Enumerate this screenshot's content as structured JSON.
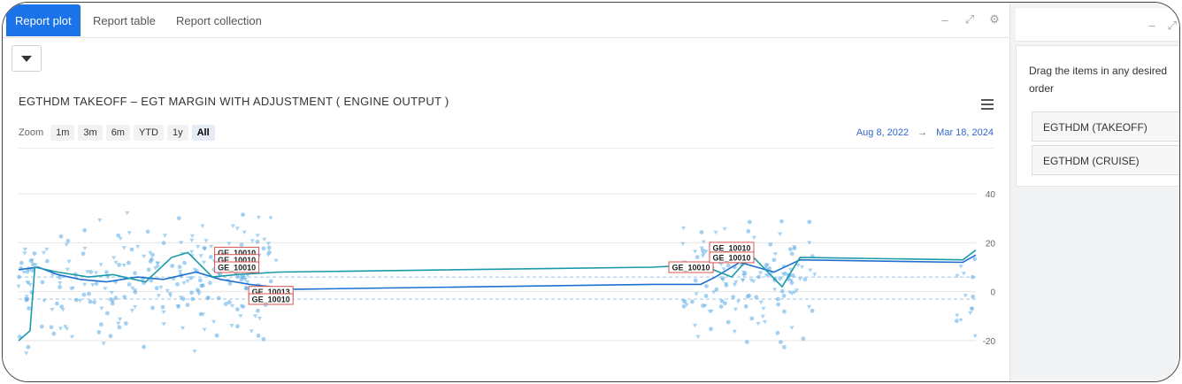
{
  "tabs": [
    {
      "label": "Report plot",
      "active": true
    },
    {
      "label": "Report table",
      "active": false
    },
    {
      "label": "Report collection",
      "active": false
    }
  ],
  "chart": {
    "title": "EGTHDM TAKEOFF – EGT MARGIN WITH ADJUSTMENT ( ENGINE OUTPUT )",
    "zoom_label": "Zoom",
    "zoom_options": [
      "1m",
      "3m",
      "6m",
      "YTD",
      "1y",
      "All"
    ],
    "zoom_selected": "All",
    "range_from": "Aug 8, 2022",
    "range_arrow": "→",
    "range_to": "Mar 18, 2024"
  },
  "chart_data": {
    "type": "line",
    "title": "EGTHDM TAKEOFF – EGT MARGIN WITH ADJUSTMENT ( ENGINE OUTPUT )",
    "xlabel": "",
    "ylabel": "",
    "x_range": [
      "2022-08-08",
      "2024-03-18"
    ],
    "ylim": [
      -20,
      40
    ],
    "y_ticks": [
      40,
      20,
      0,
      -20
    ],
    "grid": true,
    "reference_lines": [
      6,
      -3
    ],
    "series": [
      {
        "color": "#1f6fd1",
        "points": [
          [
            "2022-08-08",
            9
          ],
          [
            "2022-08-20",
            10
          ],
          [
            "2022-09-01",
            7
          ],
          [
            "2022-09-15",
            5
          ],
          [
            "2022-10-01",
            4
          ],
          [
            "2022-10-20",
            6
          ],
          [
            "2022-11-05",
            5
          ],
          [
            "2022-11-25",
            8
          ],
          [
            "2022-12-10",
            5
          ],
          [
            "2022-12-28",
            3
          ],
          [
            "2023-01-10",
            2
          ],
          [
            "2023-01-25",
            1
          ],
          [
            "2023-09-01",
            3
          ],
          [
            "2023-10-01",
            3
          ],
          [
            "2023-10-10",
            6
          ],
          [
            "2023-10-25",
            12
          ],
          [
            "2023-11-15",
            8
          ],
          [
            "2023-12-01",
            13
          ],
          [
            "2024-03-10",
            12
          ],
          [
            "2024-03-18",
            15
          ]
        ]
      },
      {
        "color": "#1a9aa8",
        "points": [
          [
            "2022-08-08",
            -20
          ],
          [
            "2022-08-15",
            -16
          ],
          [
            "2022-08-18",
            10
          ],
          [
            "2022-09-01",
            8
          ],
          [
            "2022-09-20",
            6
          ],
          [
            "2022-10-05",
            7
          ],
          [
            "2022-10-25",
            4
          ],
          [
            "2022-11-10",
            14
          ],
          [
            "2022-11-20",
            16
          ],
          [
            "2022-12-05",
            6
          ],
          [
            "2022-12-20",
            7
          ],
          [
            "2023-01-15",
            8
          ],
          [
            "2023-09-01",
            10
          ],
          [
            "2023-10-01",
            11
          ],
          [
            "2023-10-20",
            6
          ],
          [
            "2023-11-01",
            15
          ],
          [
            "2023-11-20",
            2
          ],
          [
            "2023-12-01",
            14
          ],
          [
            "2024-03-10",
            13
          ],
          [
            "2024-03-18",
            17
          ]
        ]
      }
    ],
    "scatter_range": [
      -30,
      38
    ],
    "annotations": [
      {
        "label": "GE_10010",
        "x": "2022-12-20",
        "y": 16
      },
      {
        "label": "GE_10010",
        "x": "2022-12-20",
        "y": 13
      },
      {
        "label": "GE_10010",
        "x": "2022-12-20",
        "y": 10
      },
      {
        "label": "GE_10013",
        "x": "2023-01-10",
        "y": 0
      },
      {
        "label": "GE_10010",
        "x": "2023-01-10",
        "y": -3
      },
      {
        "label": "GE_10010",
        "x": "2023-09-25",
        "y": 10
      },
      {
        "label": "GE_10010",
        "x": "2023-10-20",
        "y": 18
      },
      {
        "label": "GE_10010",
        "x": "2023-10-20",
        "y": 14
      }
    ]
  },
  "side": {
    "hint": "Drag the items in any desired order",
    "items": [
      "EGTHDM (TAKEOFF)",
      "EGTHDM (CRUISE)"
    ]
  }
}
